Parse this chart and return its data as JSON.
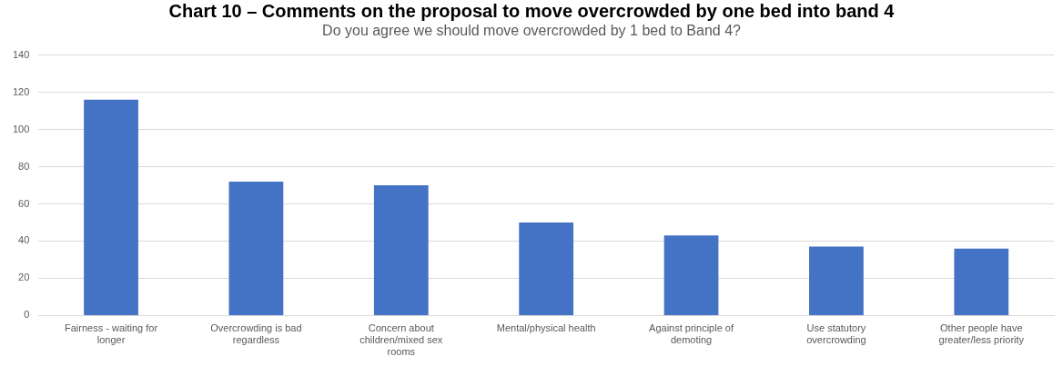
{
  "chart_data": {
    "type": "bar",
    "title": "Chart 10 – Comments on the proposal to move overcrowded by one bed into band 4",
    "subtitle": "Do you agree we should move overcrowded by 1 bed to Band 4?",
    "categories": [
      "Fairness - waiting for longer",
      "Overcrowding is bad regardless",
      "Concern about children/mixed sex rooms",
      "Mental/physical health",
      "Against principle of demoting",
      "Use statutory overcrowding",
      "Other people have greater/less priority"
    ],
    "values": [
      116,
      72,
      70,
      50,
      43,
      37,
      36
    ],
    "color": "#4472c4",
    "ylim": [
      0,
      140
    ],
    "yticks": [
      0,
      20,
      40,
      60,
      80,
      100,
      120,
      140
    ],
    "grid": "y",
    "legend": false
  }
}
